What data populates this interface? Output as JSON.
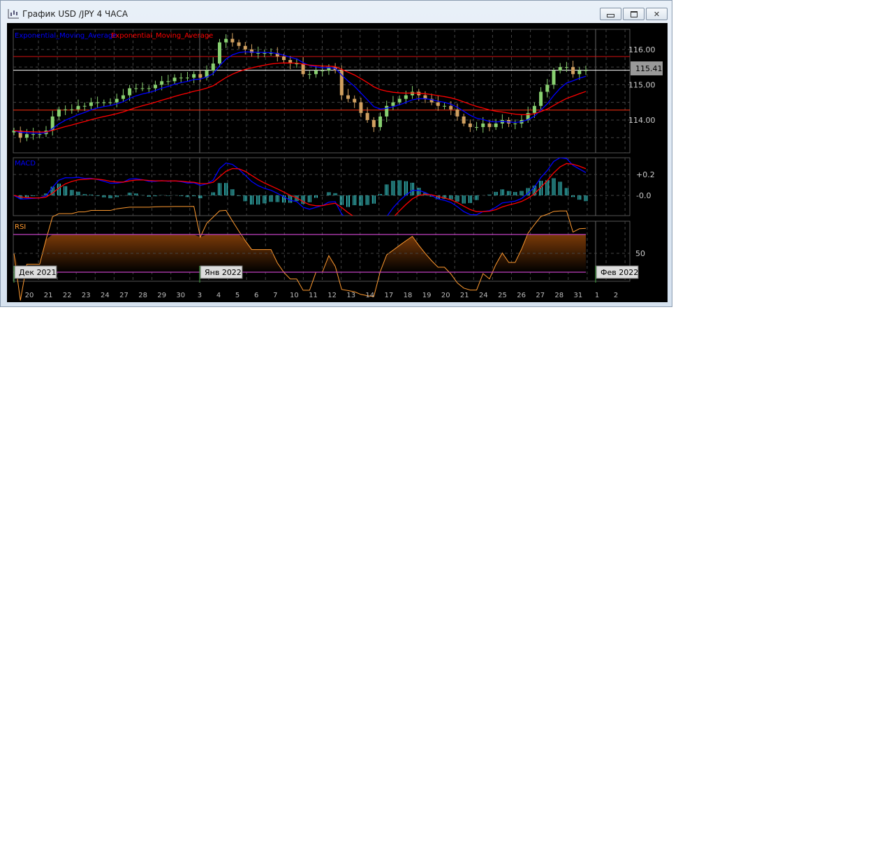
{
  "window": {
    "title": "График USD /JPY  4 ЧАСА",
    "icon": "candlestick-chart-icon",
    "buttons": [
      "minimize",
      "restore",
      "close"
    ]
  },
  "chart_data": {
    "type": "candlestick",
    "symbol": "USD/JPY",
    "timeframe": "4 ЧАСА",
    "legend": [
      {
        "name": "Exponential_Moving_Average",
        "color": "#0000ff"
      },
      {
        "name": "Exponential_Moving_Average",
        "color": "#ff0000"
      }
    ],
    "y_ticks": [
      "116.00",
      "115.00",
      "114.00"
    ],
    "ylim": [
      113.07,
      116.57
    ],
    "current_price": "115.41",
    "horizontal_lines": [
      {
        "value": 115.8,
        "color": "#d01010"
      },
      {
        "value": 115.41,
        "color": "#ffffff"
      },
      {
        "value": 114.28,
        "color": "#ff3010"
      }
    ],
    "x_labels": [
      "20",
      "21",
      "22",
      "23",
      "24",
      "27",
      "28",
      "29",
      "30",
      "3",
      "4",
      "5",
      "6",
      "7",
      "10",
      "11",
      "12",
      "13",
      "14",
      "17",
      "18",
      "19",
      "20",
      "21",
      "24",
      "25",
      "26",
      "27",
      "28",
      "31",
      "1",
      "2"
    ],
    "month_labels": [
      {
        "label": "Дек 2021",
        "index": 0
      },
      {
        "label": "Янв 2022",
        "index": 9
      },
      {
        "label": "Фев 2022",
        "index": 30
      }
    ],
    "closes": [
      113.7,
      113.5,
      113.6,
      113.6,
      113.6,
      113.7,
      114.1,
      114.3,
      114.3,
      114.3,
      114.4,
      114.4,
      114.5,
      114.5,
      114.5,
      114.5,
      114.6,
      114.7,
      114.9,
      114.9,
      114.9,
      114.9,
      115.0,
      115.1,
      115.1,
      115.2,
      115.2,
      115.2,
      115.3,
      115.2,
      115.4,
      115.6,
      116.2,
      116.3,
      116.2,
      116.1,
      116.0,
      115.9,
      115.9,
      115.9,
      115.9,
      115.8,
      115.7,
      115.6,
      115.6,
      115.3,
      115.3,
      115.4,
      115.4,
      115.5,
      115.4,
      114.7,
      114.6,
      114.5,
      114.2,
      114.0,
      113.8,
      114.1,
      114.4,
      114.5,
      114.6,
      114.7,
      114.8,
      114.7,
      114.6,
      114.5,
      114.4,
      114.4,
      114.3,
      114.1,
      113.9,
      113.8,
      113.8,
      113.9,
      113.8,
      113.9,
      114.0,
      113.9,
      113.9,
      114.0,
      114.2,
      114.4,
      114.8,
      115.0,
      115.4,
      115.5,
      115.5,
      115.3,
      115.4,
      115.41
    ],
    "macd": {
      "label": "MACD",
      "y_ticks": [
        "+0.2",
        "-0.0"
      ]
    },
    "rsi": {
      "label": "RSI",
      "levels": [
        70,
        30
      ],
      "y_ticks": [
        "50"
      ]
    },
    "colors": {
      "bull": "#88d070",
      "bear": "#d0a060",
      "ema_fast": "#0000ff",
      "ema_slow": "#ff0000",
      "macd_hist": "#40e0e0",
      "rsi": "#ff9a30",
      "rsi_level": "#c040c0"
    }
  }
}
